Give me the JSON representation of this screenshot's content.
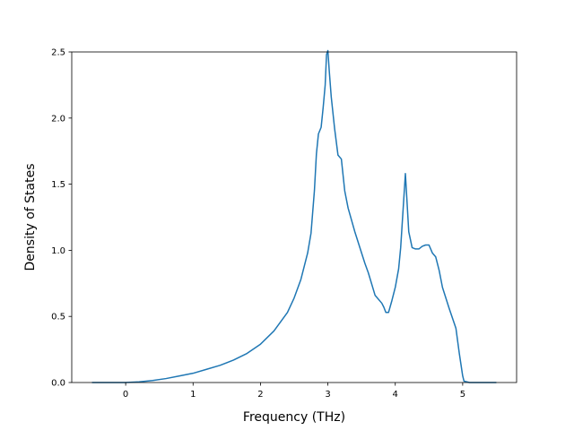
{
  "chart_data": {
    "type": "line",
    "title": "",
    "xlabel": "Frequency (THz)",
    "ylabel": "Density of States",
    "xlim": [
      -0.8,
      5.8
    ],
    "ylim": [
      0.0,
      2.5
    ],
    "x_ticks": [
      0,
      1,
      2,
      3,
      4,
      5
    ],
    "y_ticks": [
      0.0,
      0.5,
      1.0,
      1.5,
      2.0,
      2.5
    ],
    "x_tick_labels": [
      "0",
      "1",
      "2",
      "3",
      "4",
      "5"
    ],
    "y_tick_labels": [
      "0.0",
      "0.5",
      "1.0",
      "1.5",
      "2.0",
      "2.5"
    ],
    "grid": false,
    "line_color": "#1f77b4",
    "series": [
      {
        "x": [
          -0.5,
          -0.2,
          0.0,
          0.2,
          0.4,
          0.6,
          0.8,
          1.0,
          1.2,
          1.4,
          1.6,
          1.8,
          2.0,
          2.2,
          2.4,
          2.5,
          2.6,
          2.7,
          2.75,
          2.8,
          2.83,
          2.86,
          2.9,
          2.93,
          2.96,
          2.98,
          3.0,
          3.02,
          3.05,
          3.1,
          3.15,
          3.2,
          3.25,
          3.3,
          3.4,
          3.5,
          3.55,
          3.6,
          3.7,
          3.8,
          3.83,
          3.86,
          3.9,
          3.95,
          4.0,
          4.05,
          4.08,
          4.1,
          4.12,
          4.15,
          4.2,
          4.25,
          4.3,
          4.35,
          4.4,
          4.45,
          4.5,
          4.55,
          4.6,
          4.65,
          4.7,
          4.8,
          4.9,
          4.95,
          5.0,
          5.02,
          5.1,
          5.3,
          5.5
        ],
        "y": [
          0.0,
          0.0,
          0.0,
          0.005,
          0.015,
          0.03,
          0.05,
          0.07,
          0.1,
          0.13,
          0.17,
          0.22,
          0.29,
          0.39,
          0.53,
          0.64,
          0.78,
          0.98,
          1.13,
          1.45,
          1.73,
          1.88,
          1.93,
          2.08,
          2.25,
          2.48,
          2.51,
          2.36,
          2.16,
          1.92,
          1.72,
          1.69,
          1.45,
          1.32,
          1.14,
          0.98,
          0.9,
          0.83,
          0.66,
          0.6,
          0.57,
          0.53,
          0.53,
          0.62,
          0.72,
          0.86,
          1.02,
          1.18,
          1.34,
          1.58,
          1.14,
          1.02,
          1.01,
          1.01,
          1.03,
          1.04,
          1.04,
          0.98,
          0.95,
          0.85,
          0.72,
          0.56,
          0.41,
          0.22,
          0.05,
          0.01,
          0.0,
          0.0,
          0.0
        ]
      }
    ]
  }
}
